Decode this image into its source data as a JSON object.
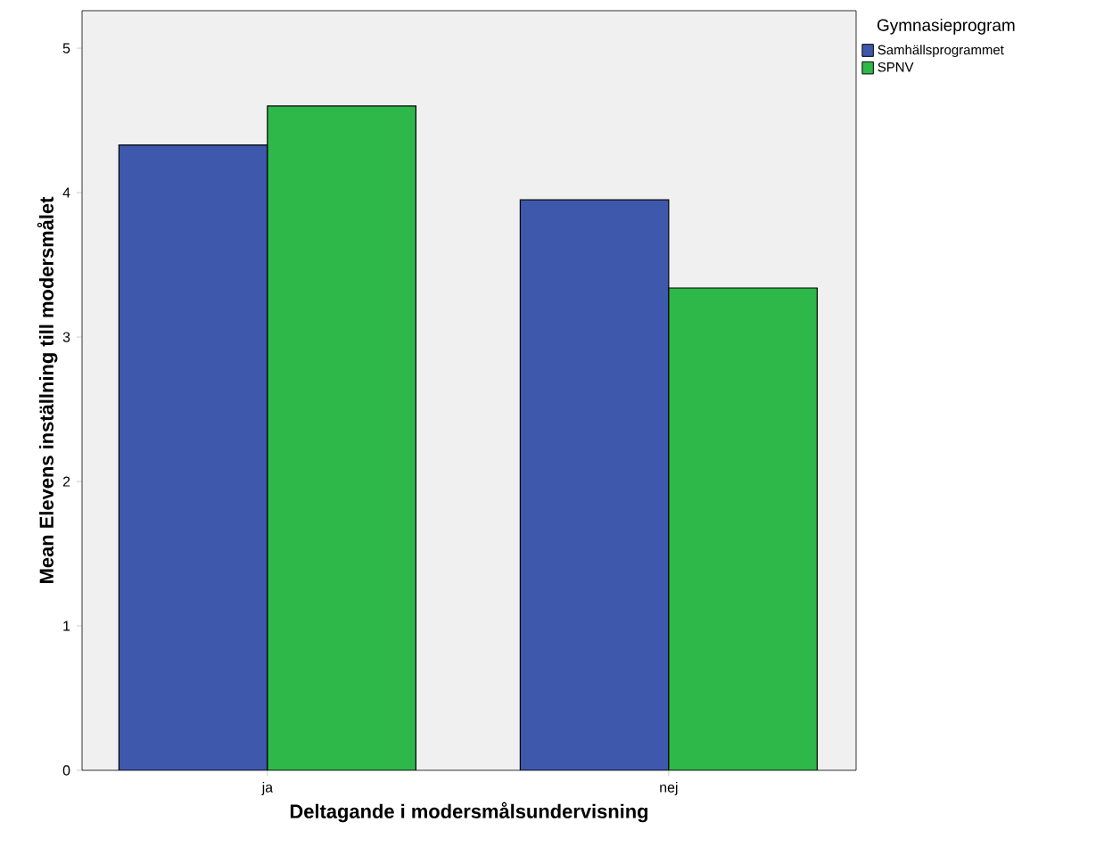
{
  "chart_data": {
    "type": "bar",
    "xlabel": "Deltagande i modersmålsundervisning",
    "ylabel": "Mean Elevens inställning till modersmålet",
    "legend_title": "Gymnasieprogram",
    "categories": [
      "ja",
      "nej"
    ],
    "series": [
      {
        "name": "Samhällsprogrammet",
        "color": "#3e58ac",
        "values": [
          4.33,
          3.95
        ]
      },
      {
        "name": "SPNV",
        "color": "#2fb84a",
        "values": [
          4.6,
          3.34
        ]
      }
    ],
    "ylim": [
      0,
      5.26
    ],
    "yticks": [
      0,
      1,
      2,
      3,
      4,
      5
    ],
    "legend": "top right",
    "grid": false
  }
}
